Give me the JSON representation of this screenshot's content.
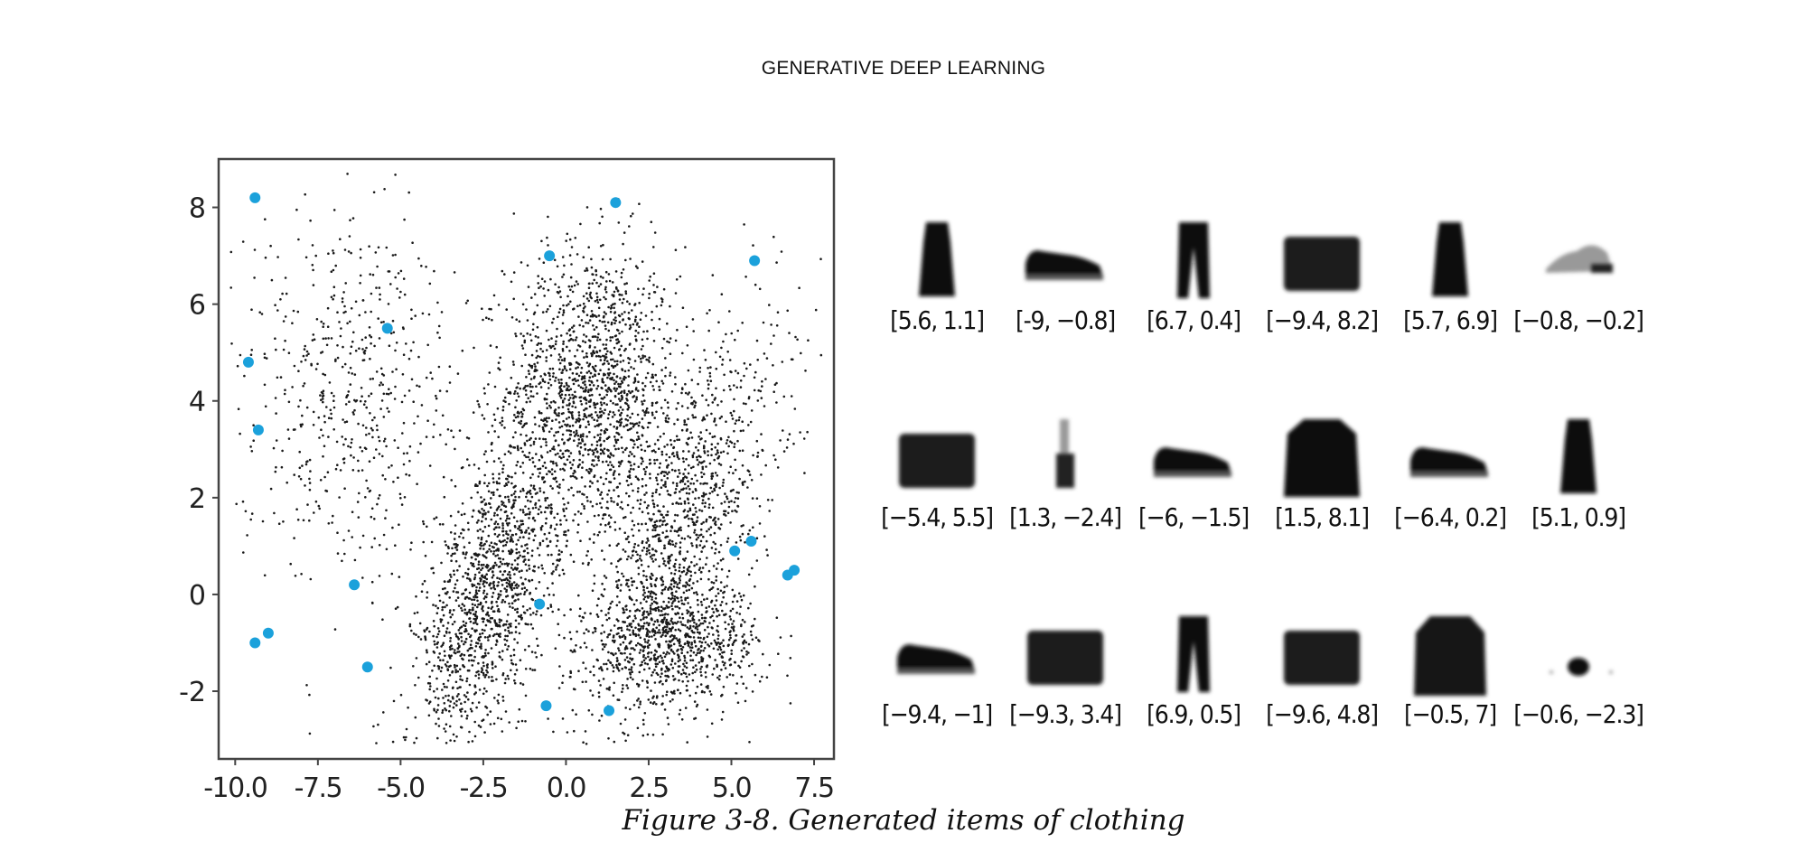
{
  "header": {
    "title": "GENERATIVE DEEP LEARNING"
  },
  "caption": "Figure 3-8. Generated items of clothing",
  "colors": {
    "latent_points": "#1a1a1a",
    "sample_points": "#1ba1db",
    "frame": "#444444"
  },
  "chart_data": {
    "type": "scatter",
    "title": "",
    "xlabel": "",
    "ylabel": "",
    "xlim": [
      -10.5,
      8.1
    ],
    "ylim": [
      -3.4,
      9.0
    ],
    "x_ticks": [
      "-10.0",
      "-7.5",
      "-5.0",
      "-2.5",
      "0.0",
      "2.5",
      "5.0",
      "7.5"
    ],
    "y_ticks": [
      "-2",
      "0",
      "2",
      "4",
      "6",
      "8"
    ],
    "grid": false,
    "legend": "none",
    "series": [
      {
        "role": "encoded-latent-points",
        "clusters": [
          {
            "label": "upper-center",
            "center": [
              0.8,
              4.2
            ],
            "spread": [
              1.3,
              1.5
            ],
            "count": 1500
          },
          {
            "label": "right-diagonal",
            "center": [
              3.4,
              1.2
            ],
            "spread": [
              1.5,
              1.6
            ],
            "count": 1300
          },
          {
            "label": "lower-right",
            "center": [
              3.4,
              -1.0
            ],
            "spread": [
              1.3,
              0.6
            ],
            "count": 700
          },
          {
            "label": "left-diagonal",
            "center": [
              -2.3,
              0.0
            ],
            "spread": [
              1.1,
              1.4
            ],
            "count": 1400
          },
          {
            "label": "upper-left-sparse",
            "center": [
              -6.5,
              4.2
            ],
            "spread": [
              1.8,
              2.0
            ],
            "count": 600
          }
        ]
      },
      {
        "role": "sampled-points",
        "points": [
          [
            5.6,
            1.1
          ],
          [
            -9.0,
            -0.8
          ],
          [
            6.7,
            0.4
          ],
          [
            -9.4,
            8.2
          ],
          [
            5.7,
            6.9
          ],
          [
            -0.8,
            -0.2
          ],
          [
            -5.4,
            5.5
          ],
          [
            1.3,
            -2.4
          ],
          [
            -6.0,
            -1.5
          ],
          [
            1.5,
            8.1
          ],
          [
            -6.4,
            0.2
          ],
          [
            5.1,
            0.9
          ],
          [
            -9.4,
            -1.0
          ],
          [
            -9.3,
            3.4
          ],
          [
            6.9,
            0.5
          ],
          [
            -9.6,
            4.8
          ],
          [
            -0.5,
            7.0
          ],
          [
            -0.6,
            -2.3
          ]
        ]
      }
    ]
  },
  "samples": [
    {
      "label": "[5.6, 1.1]",
      "icon": "dress"
    },
    {
      "label": "[-9, −0.8]",
      "icon": "sneaker"
    },
    {
      "label": "[6.7, 0.4]",
      "icon": "trouser"
    },
    {
      "label": "[−9.4, 8.2]",
      "icon": "bag"
    },
    {
      "label": "[5.7, 6.9]",
      "icon": "dress"
    },
    {
      "label": "[−0.8, −0.2]",
      "icon": "faint-sandal"
    },
    {
      "label": "[−5.4, 5.5]",
      "icon": "bag"
    },
    {
      "label": "[1.3, −2.4]",
      "icon": "faint-figure"
    },
    {
      "label": "[−6, −1.5]",
      "icon": "sneaker"
    },
    {
      "label": "[1.5, 8.1]",
      "icon": "pullover"
    },
    {
      "label": "[−6.4, 0.2]",
      "icon": "sneaker"
    },
    {
      "label": "[5.1, 0.9]",
      "icon": "dress"
    },
    {
      "label": "[−9.4, −1]",
      "icon": "sneaker"
    },
    {
      "label": "[−9.3, 3.4]",
      "icon": "bag"
    },
    {
      "label": "[6.9, 0.5]",
      "icon": "trouser"
    },
    {
      "label": "[−9.6, 4.8]",
      "icon": "bag"
    },
    {
      "label": "[−0.5, 7]",
      "icon": "coat"
    },
    {
      "label": "[−0.6, −2.3]",
      "icon": "faint-blob"
    }
  ]
}
